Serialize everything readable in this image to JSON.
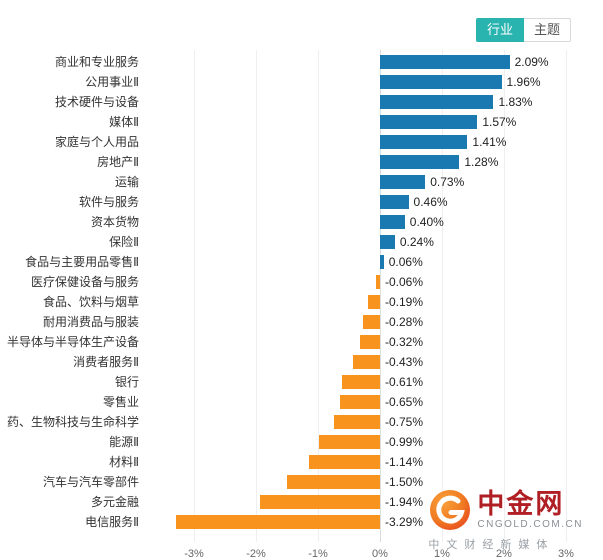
{
  "tabs": [
    {
      "label": "行业",
      "active": true
    },
    {
      "label": "主题",
      "active": false
    }
  ],
  "colors": {
    "positive": "#1a79b0",
    "negative": "#f8941e",
    "tab_active_bg": "#2ab4b0",
    "brand_red": "#b01f24"
  },
  "chart_data": {
    "type": "bar",
    "orientation": "horizontal",
    "title": "",
    "xlabel": "",
    "ylabel": "",
    "xlim": [
      -3.7,
      3.6
    ],
    "grid": true,
    "categories": [
      "商业和专业服务",
      "公用事业Ⅱ",
      "技术硬件与设备",
      "媒体Ⅱ",
      "家庭与个人用品",
      "房地产Ⅱ",
      "运输",
      "软件与服务",
      "资本货物",
      "保险Ⅱ",
      "食品与主要用品零售Ⅱ",
      "医疗保健设备与服务",
      "食品、饮料与烟草",
      "耐用消费品与服装",
      "半导体与半导体生产设备",
      "消费者服务Ⅱ",
      "银行",
      "零售业",
      "药、生物科技与生命科学",
      "能源Ⅱ",
      "材料Ⅱ",
      "汽车与汽车零部件",
      "多元金融",
      "电信服务Ⅱ"
    ],
    "values": [
      2.09,
      1.96,
      1.83,
      1.57,
      1.41,
      1.28,
      0.73,
      0.46,
      0.4,
      0.24,
      0.06,
      -0.06,
      -0.19,
      -0.28,
      -0.32,
      -0.43,
      -0.61,
      -0.65,
      -0.75,
      -0.99,
      -1.14,
      -1.5,
      -1.94,
      -3.29
    ],
    "value_labels": [
      "2.09%",
      "1.96%",
      "1.83%",
      "1.57%",
      "1.41%",
      "1.28%",
      "0.73%",
      "0.46%",
      "0.40%",
      "0.24%",
      "0.06%",
      "-0.06%",
      "-0.19%",
      "-0.28%",
      "-0.32%",
      "-0.43%",
      "-0.61%",
      "-0.65%",
      "-0.75%",
      "-0.99%",
      "-1.14%",
      "-1.50%",
      "-1.94%",
      "-3.29%"
    ],
    "x_tick_values": [
      -3,
      -2,
      -1,
      0,
      1,
      2,
      3
    ],
    "x_tick_labels": [
      "-3%",
      "-2%",
      "-1%",
      "0%",
      "1%",
      "2%",
      "3%"
    ]
  },
  "watermark": {
    "brand": "中金网",
    "domain": "CNGOLD.COM.CN",
    "tagline": "中文财经新媒体"
  }
}
